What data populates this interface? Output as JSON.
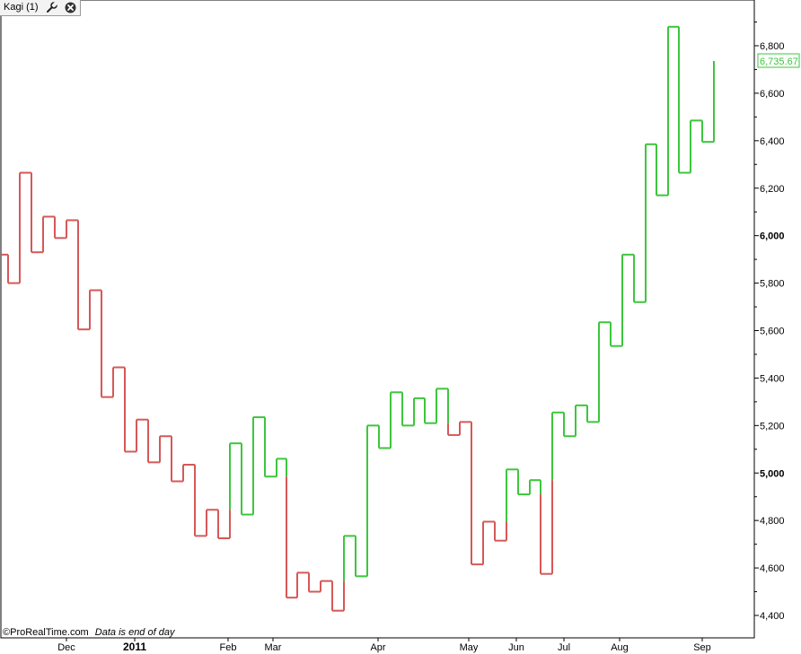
{
  "window": {
    "indicator_title": "Kagi (1)",
    "settings_icon": "wrench-icon",
    "close_icon": "close-icon"
  },
  "footer": {
    "copyright": "©ProRealTime.com",
    "note": "Data is end of day"
  },
  "colors": {
    "up": "#3dc63d",
    "down": "#d65858",
    "axis": "#000000",
    "last_price": "#3dc63d"
  },
  "chart_data": {
    "type": "line",
    "style": "kagi",
    "ylim": [
      4330,
      6990
    ],
    "y_ticks": [
      {
        "value": 6800,
        "label": "6,800",
        "bold": false
      },
      {
        "value": 6600,
        "label": "6,600",
        "bold": false
      },
      {
        "value": 6400,
        "label": "6,400",
        "bold": false
      },
      {
        "value": 6200,
        "label": "6,200",
        "bold": false
      },
      {
        "value": 6000,
        "label": "6,000",
        "bold": true
      },
      {
        "value": 5800,
        "label": "5,800",
        "bold": false
      },
      {
        "value": 5600,
        "label": "5,600",
        "bold": false
      },
      {
        "value": 5400,
        "label": "5,400",
        "bold": false
      },
      {
        "value": 5200,
        "label": "5,200",
        "bold": false
      },
      {
        "value": 5000,
        "label": "5,000",
        "bold": true
      },
      {
        "value": 4800,
        "label": "4,800",
        "bold": false
      },
      {
        "value": 4600,
        "label": "4,600",
        "bold": false
      },
      {
        "value": 4400,
        "label": "4,400",
        "bold": false
      }
    ],
    "x_ticks": [
      {
        "label": "Dec",
        "bold": false
      },
      {
        "label": "2011",
        "bold": true
      },
      {
        "label": "Feb",
        "bold": false
      },
      {
        "label": "Mar",
        "bold": false
      },
      {
        "label": "Apr",
        "bold": false
      },
      {
        "label": "May",
        "bold": false
      },
      {
        "label": "Jun",
        "bold": false
      },
      {
        "label": "Jul",
        "bold": false
      },
      {
        "label": "Aug",
        "bold": false
      },
      {
        "label": "Sep",
        "bold": false
      }
    ],
    "start_value": 5920,
    "reversals": [
      5800,
      6265,
      5930,
      6080,
      5990,
      6065,
      5605,
      5770,
      5320,
      5445,
      5090,
      5225,
      5045,
      5155,
      4965,
      5035,
      4735,
      4845,
      4725,
      5125,
      4825,
      5235,
      4985,
      5060,
      4475,
      4580,
      4500,
      4545,
      4420,
      4735,
      4565,
      5200,
      5105,
      5340,
      5200,
      5315,
      5210,
      5355,
      5160,
      5215,
      4615,
      4795,
      4715,
      5015,
      4910,
      4970,
      4575,
      5255,
      5155,
      5285,
      5215,
      5635,
      5535,
      5920,
      5720,
      6385,
      6170,
      6880,
      6265,
      6485,
      6395,
      6735.67
    ],
    "last_value": 6735.67,
    "last_label": "6,735.67"
  }
}
